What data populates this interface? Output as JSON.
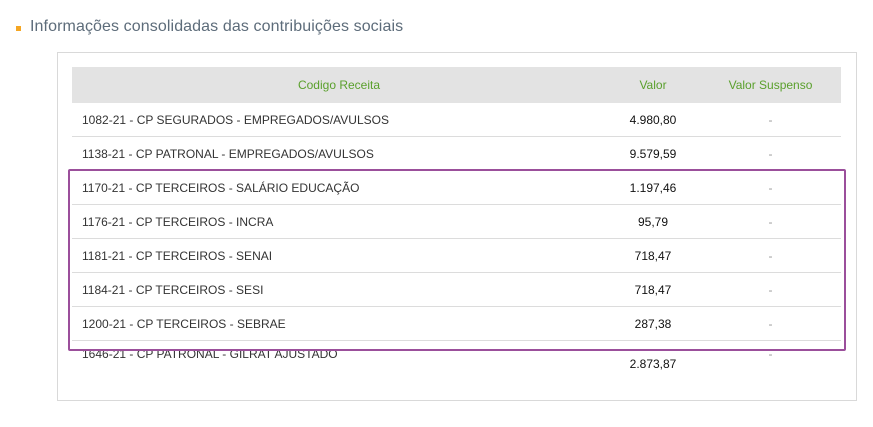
{
  "section": {
    "title": "Informações consolidadas das contribuições sociais",
    "bullet_color": "#f5a623"
  },
  "table": {
    "headers": {
      "code": "Codigo Receita",
      "value": "Valor",
      "suspended": "Valor Suspenso"
    },
    "rows": [
      {
        "code": "1082-21 - CP SEGURADOS - EMPREGADOS/AVULSOS",
        "value": "4.980,80",
        "suspended": "-"
      },
      {
        "code": "1138-21 - CP PATRONAL - EMPREGADOS/AVULSOS",
        "value": "9.579,59",
        "suspended": "-"
      },
      {
        "code": "1170-21 - CP TERCEIROS - SALÁRIO EDUCAÇÃO",
        "value": "1.197,46",
        "suspended": "-"
      },
      {
        "code": "1176-21 - CP TERCEIROS - INCRA",
        "value": "95,79",
        "suspended": "-"
      },
      {
        "code": "1181-21 - CP TERCEIROS - SENAI",
        "value": "718,47",
        "suspended": "-"
      },
      {
        "code": "1184-21 - CP TERCEIROS - SESI",
        "value": "718,47",
        "suspended": "-"
      },
      {
        "code": "1200-21 - CP TERCEIROS - SEBRAE",
        "value": "287,38",
        "suspended": "-"
      },
      {
        "code": "1646-21 - CP PATRONAL - GILRAT AJUSTADO",
        "value": "2.873,87",
        "suspended": "-"
      }
    ]
  },
  "highlight_color": "#9b4f9b"
}
